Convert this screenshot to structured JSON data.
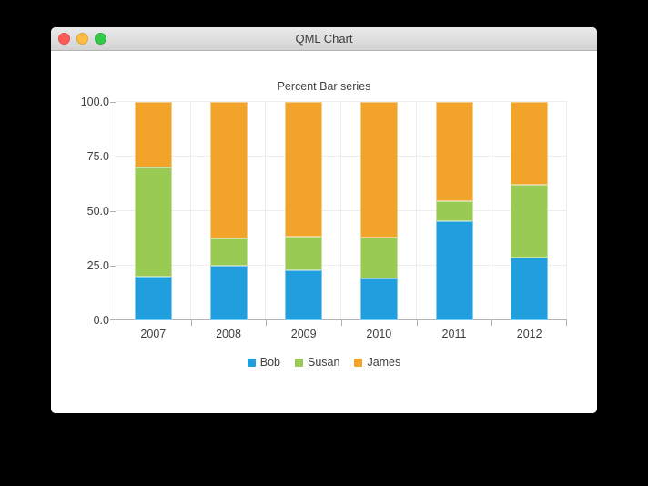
{
  "window": {
    "title": "QML Chart",
    "controls": {
      "close": "close",
      "minimize": "minimize",
      "zoom": "zoom"
    }
  },
  "chart_data": {
    "type": "bar",
    "variant": "percent-stacked",
    "title": "Percent Bar series",
    "categories": [
      "2007",
      "2008",
      "2009",
      "2010",
      "2011",
      "2012"
    ],
    "series": [
      {
        "name": "Bob",
        "color": "#209ede",
        "values_percent": [
          20.0,
          25.0,
          23.1,
          19.0,
          45.5,
          28.6
        ]
      },
      {
        "name": "Susan",
        "color": "#99ca53",
        "values_percent": [
          50.0,
          12.5,
          15.4,
          19.1,
          9.1,
          33.3
        ]
      },
      {
        "name": "James",
        "color": "#f2a42a",
        "values_percent": [
          30.0,
          62.5,
          61.5,
          61.9,
          45.4,
          38.1
        ]
      }
    ],
    "y_axis": {
      "tick_labels": [
        "0.0",
        "25.0",
        "50.0",
        "75.0",
        "100.0"
      ],
      "tick_values": [
        0,
        25,
        50,
        75,
        100
      ],
      "range": [
        0,
        100
      ]
    },
    "legend_position": "bottom",
    "grid": true
  },
  "colors": {
    "grid": "#ececec",
    "axis": "#b1b1b3",
    "label": "#404044",
    "traffic_red": "#fc5b57",
    "traffic_yellow": "#fdbd40",
    "traffic_green": "#34c84a"
  }
}
